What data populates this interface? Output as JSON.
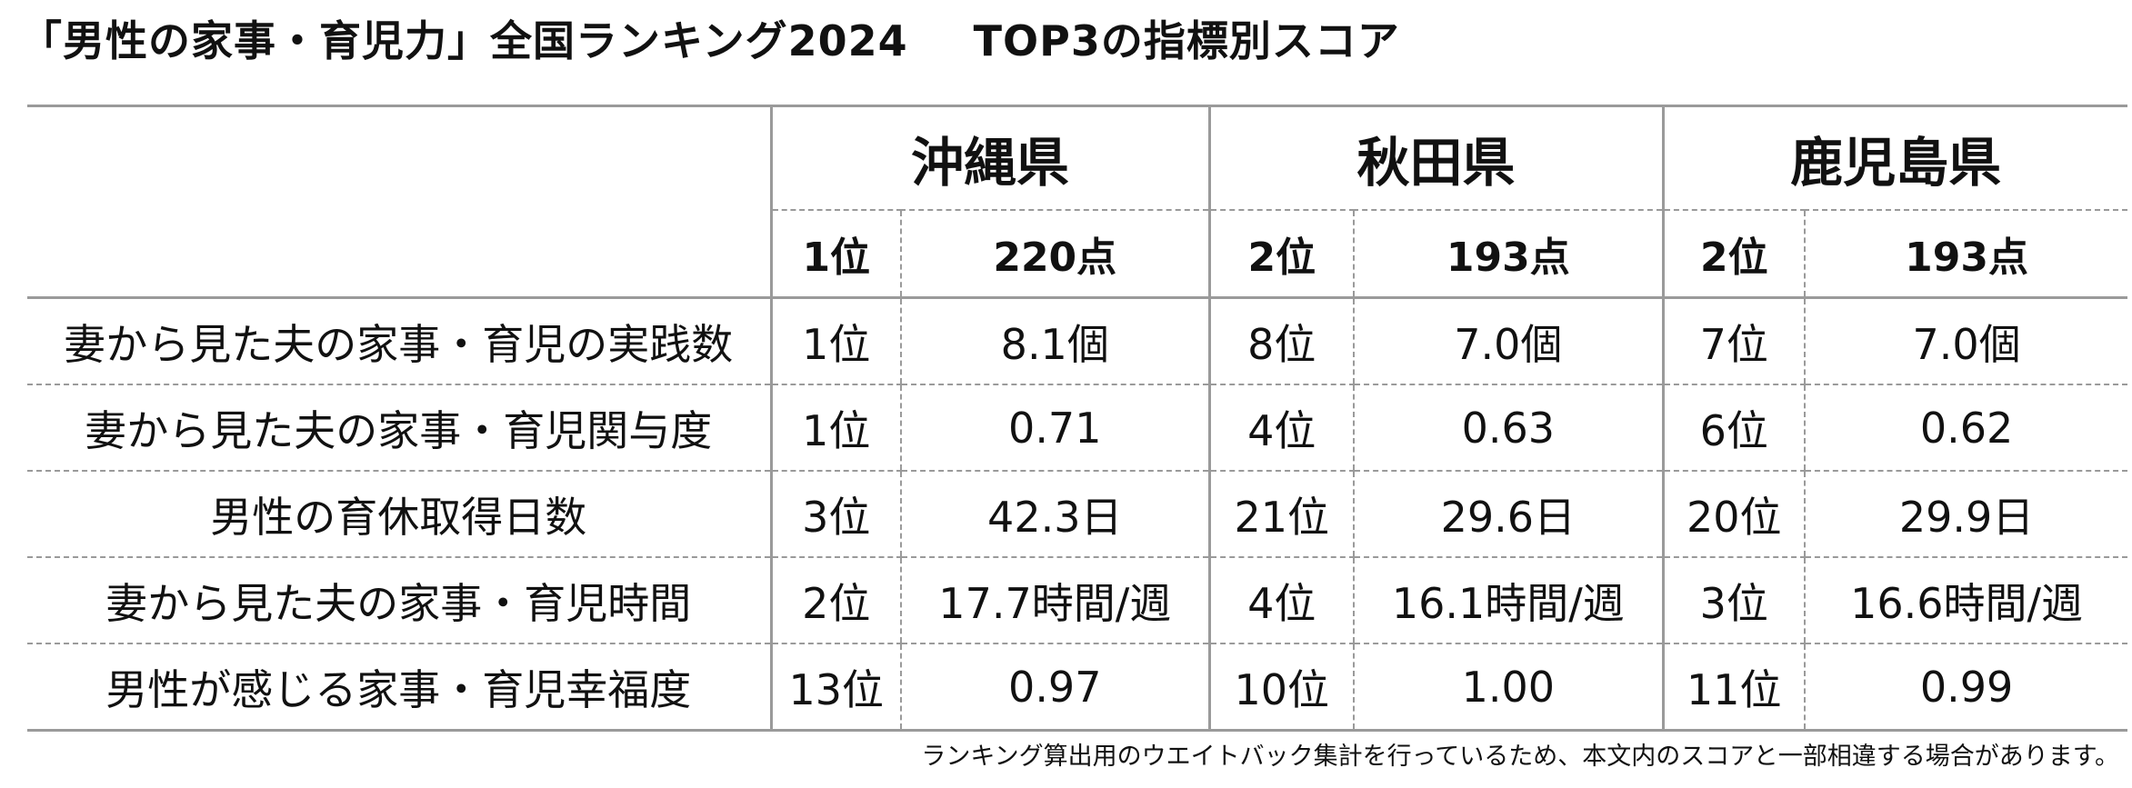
{
  "title": {
    "main": "「男性の家事・育児力」全国ランキング2024",
    "sub": "TOP3の指標別スコア"
  },
  "prefectures": [
    {
      "name": "沖縄県",
      "rank": "1位",
      "score": "220点"
    },
    {
      "name": "秋田県",
      "rank": "2位",
      "score": "193点"
    },
    {
      "name": "鹿児島県",
      "rank": "2位",
      "score": "193点"
    }
  ],
  "rows": [
    {
      "label": "妻から見た夫の家事・育児の実践数",
      "cells": [
        {
          "rank": "1位",
          "value": "8.1個"
        },
        {
          "rank": "8位",
          "value": "7.0個"
        },
        {
          "rank": "7位",
          "value": "7.0個"
        }
      ]
    },
    {
      "label": "妻から見た夫の家事・育児関与度",
      "cells": [
        {
          "rank": "1位",
          "value": "0.71"
        },
        {
          "rank": "4位",
          "value": "0.63"
        },
        {
          "rank": "6位",
          "value": "0.62"
        }
      ]
    },
    {
      "label": "男性の育休取得日数",
      "cells": [
        {
          "rank": "3位",
          "value": "42.3日"
        },
        {
          "rank": "21位",
          "value": "29.6日"
        },
        {
          "rank": "20位",
          "value": "29.9日"
        }
      ]
    },
    {
      "label": "妻から見た夫の家事・育児時間",
      "cells": [
        {
          "rank": "2位",
          "value": "17.7時間/週"
        },
        {
          "rank": "4位",
          "value": "16.1時間/週"
        },
        {
          "rank": "3位",
          "value": "16.6時間/週"
        }
      ]
    },
    {
      "label": "男性が感じる家事・育児幸福度",
      "cells": [
        {
          "rank": "13位",
          "value": "0.97"
        },
        {
          "rank": "10位",
          "value": "1.00"
        },
        {
          "rank": "11位",
          "value": "0.99"
        }
      ]
    }
  ],
  "footnote": "ランキング算出用のウエイトバック集計を行っているため、本文内のスコアと一部相違する場合があります。"
}
